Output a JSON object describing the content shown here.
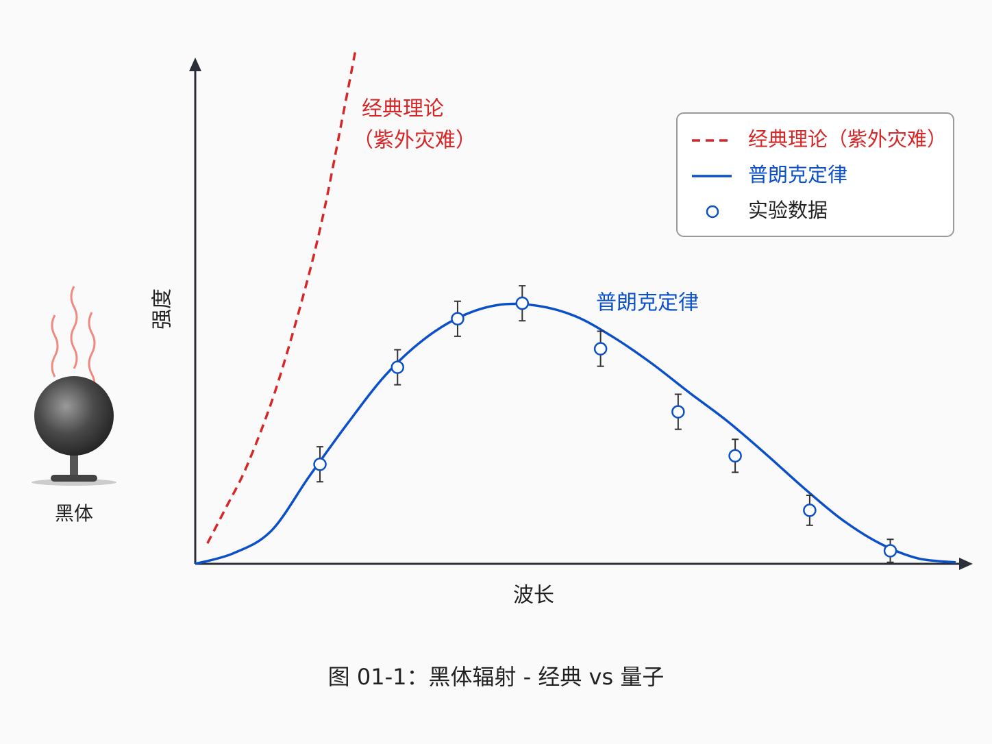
{
  "chart_data": {
    "type": "line",
    "x_label": "波长",
    "y_label": "强度",
    "caption": "图 01-1：黑体辐射 - 经典 vs 量子",
    "icon_label": "黑体",
    "annotations": [
      "经典理论",
      "（紫外灾难）",
      "普朗克定律"
    ],
    "xlim": [
      0,
      100
    ],
    "ylim": [
      0,
      100
    ],
    "legend": "upper right",
    "series": [
      {
        "name": "经典理论（紫外灾难）",
        "color": "#d62728",
        "dashed": true,
        "x": [
          1.6,
          4.1,
          6.8,
          10.4,
          14,
          16.7,
          19.4,
          21.1
        ],
        "values": [
          4.1,
          11.4,
          19.6,
          34,
          52.5,
          68.9,
          89.5,
          102.9
        ]
      },
      {
        "name": "普朗克定律",
        "color": "#0b50c8",
        "dashed": false,
        "x": [
          0,
          5,
          10,
          15,
          20,
          25,
          30,
          35,
          40,
          45,
          50,
          55,
          60,
          65,
          70,
          75,
          80,
          85,
          90,
          95,
          100
        ],
        "values": [
          0,
          2.1,
          6.6,
          17.5,
          28,
          37.7,
          44.8,
          49.5,
          51.8,
          51.6,
          49.5,
          45.3,
          40.1,
          34.2,
          28.5,
          22,
          15.2,
          8.9,
          4.1,
          1.1,
          0.3
        ]
      },
      {
        "name": "实验数据",
        "type": "scatter",
        "color": "#0b50c8",
        "x": [
          16.4,
          26.6,
          34.5,
          43.0,
          53.3,
          63.5,
          71.0,
          80.8,
          91.4
        ],
        "values": [
          19.9,
          39.3,
          49.0,
          52.1,
          43.0,
          30.4,
          21.6,
          10.7,
          2.6
        ],
        "errors": [
          3.5,
          3.5,
          3.5,
          3.5,
          3.5,
          3.5,
          3.3,
          3.0,
          2.3
        ]
      }
    ]
  }
}
